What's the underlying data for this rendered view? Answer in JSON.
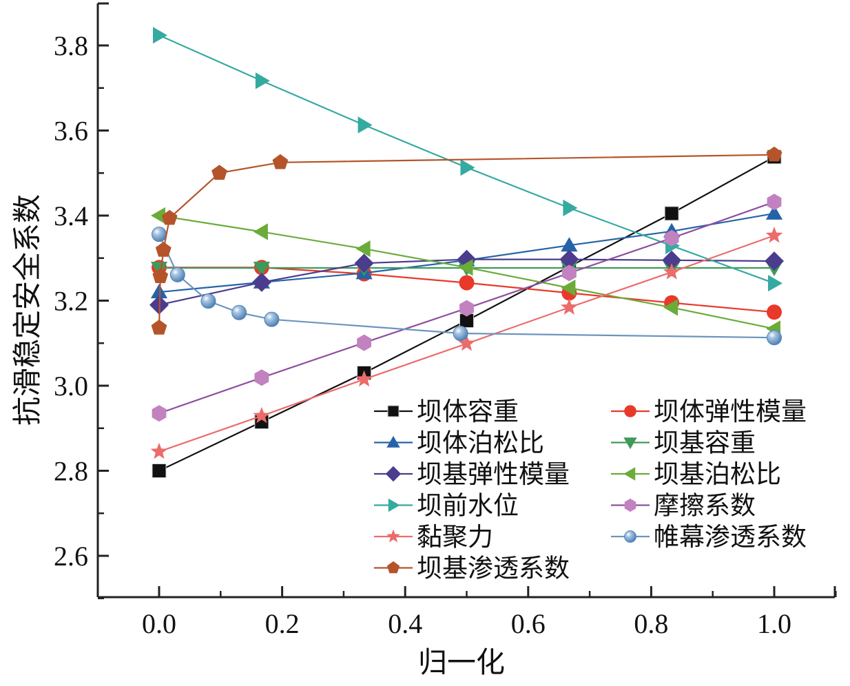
{
  "chart_data": {
    "type": "line",
    "title": "",
    "xlabel": "归一化",
    "ylabel": "抗滑稳定安全系数",
    "xlim": [
      -0.1,
      1.1
    ],
    "ylim": [
      2.5,
      3.9
    ],
    "x_ticks": [
      "0.0",
      "0.2",
      "0.4",
      "0.6",
      "0.8",
      "1.0"
    ],
    "x_tick_values": [
      0,
      0.2,
      0.4,
      0.6,
      0.8,
      1.0
    ],
    "y_ticks": [
      "2.6",
      "2.8",
      "3.0",
      "3.2",
      "3.4",
      "3.6",
      "3.8"
    ],
    "y_tick_values": [
      2.6,
      2.8,
      3.0,
      3.2,
      3.4,
      3.6,
      3.8
    ],
    "grid": false,
    "legend_position": "bottom-right",
    "series": [
      {
        "name": "坝体容重",
        "color": "#111111",
        "marker": "square",
        "x": [
          0,
          0.1667,
          0.3333,
          0.5,
          0.6667,
          0.8333,
          1.0
        ],
        "y": [
          2.8,
          2.915,
          3.03,
          3.153,
          3.28,
          3.405,
          3.538
        ]
      },
      {
        "name": "坝体弹性模量",
        "color": "#e8392a",
        "marker": "circle",
        "x": [
          0,
          0.1667,
          0.3333,
          0.5,
          0.6667,
          0.8333,
          1.0
        ],
        "y": [
          3.278,
          3.278,
          3.263,
          3.242,
          3.218,
          3.195,
          3.173
        ]
      },
      {
        "name": "坝体泊松比",
        "color": "#2563a8",
        "marker": "triangle-up",
        "x": [
          0,
          0.1667,
          0.3333,
          0.5,
          0.6667,
          0.8333,
          1.0
        ],
        "y": [
          3.22,
          3.243,
          3.265,
          3.295,
          3.33,
          3.363,
          3.405
        ]
      },
      {
        "name": "坝基容重",
        "color": "#3f9a5a",
        "marker": "triangle-down",
        "x": [
          0,
          0.1667,
          0.3333,
          0.5,
          0.6667,
          0.8333,
          1.0
        ],
        "y": [
          3.277,
          3.277,
          3.277,
          3.277,
          3.277,
          3.277,
          3.277
        ]
      },
      {
        "name": "坝基弹性模量",
        "color": "#4b3c8e",
        "marker": "diamond",
        "x": [
          0,
          0.1667,
          0.3333,
          0.5,
          0.6667,
          0.8333,
          1.0
        ],
        "y": [
          3.19,
          3.243,
          3.288,
          3.297,
          3.297,
          3.295,
          3.293
        ]
      },
      {
        "name": "坝基泊松比",
        "color": "#6aab3a",
        "marker": "triangle-left",
        "x": [
          0,
          0.1667,
          0.3333,
          0.5,
          0.6667,
          0.8333,
          1.0
        ],
        "y": [
          3.4,
          3.362,
          3.322,
          3.278,
          3.23,
          3.184,
          3.134
        ]
      },
      {
        "name": "坝前水位",
        "color": "#35aaa0",
        "marker": "triangle-right",
        "x": [
          0,
          0.1667,
          0.3333,
          0.5,
          0.6667,
          0.8333,
          1.0
        ],
        "y": [
          3.824,
          3.717,
          3.613,
          3.513,
          3.418,
          3.329,
          3.241
        ]
      },
      {
        "name": "摩擦系数",
        "color": "#c182bf",
        "line_color": "#8e4fa0",
        "marker": "hexagon",
        "x": [
          0,
          0.1667,
          0.3333,
          0.5,
          0.6667,
          0.8333,
          1.0
        ],
        "y": [
          2.935,
          3.019,
          3.101,
          3.182,
          3.265,
          3.347,
          3.432
        ]
      },
      {
        "name": "黏聚力",
        "color": "#ec6b6b",
        "marker": "star",
        "x": [
          0,
          0.1667,
          0.3333,
          0.5,
          0.6667,
          0.8333,
          1.0
        ],
        "y": [
          2.845,
          2.929,
          3.015,
          3.099,
          3.184,
          3.267,
          3.353
        ]
      },
      {
        "name": "帷幕渗透系数",
        "color": "#5b8fc2",
        "line_color": "#6a95bf",
        "marker": "ball",
        "x": [
          0,
          0.03,
          0.08,
          0.13,
          0.183,
          0.49,
          1.0
        ],
        "y": [
          3.356,
          3.261,
          3.199,
          3.172,
          3.156,
          3.123,
          3.113
        ]
      },
      {
        "name": "坝基渗透系数",
        "color": "#b5542a",
        "marker": "pentagon",
        "x": [
          0,
          0.002,
          0.007,
          0.017,
          0.098,
          0.197,
          1.0
        ],
        "y": [
          3.136,
          3.257,
          3.319,
          3.394,
          3.5,
          3.525,
          3.543
        ]
      }
    ]
  }
}
